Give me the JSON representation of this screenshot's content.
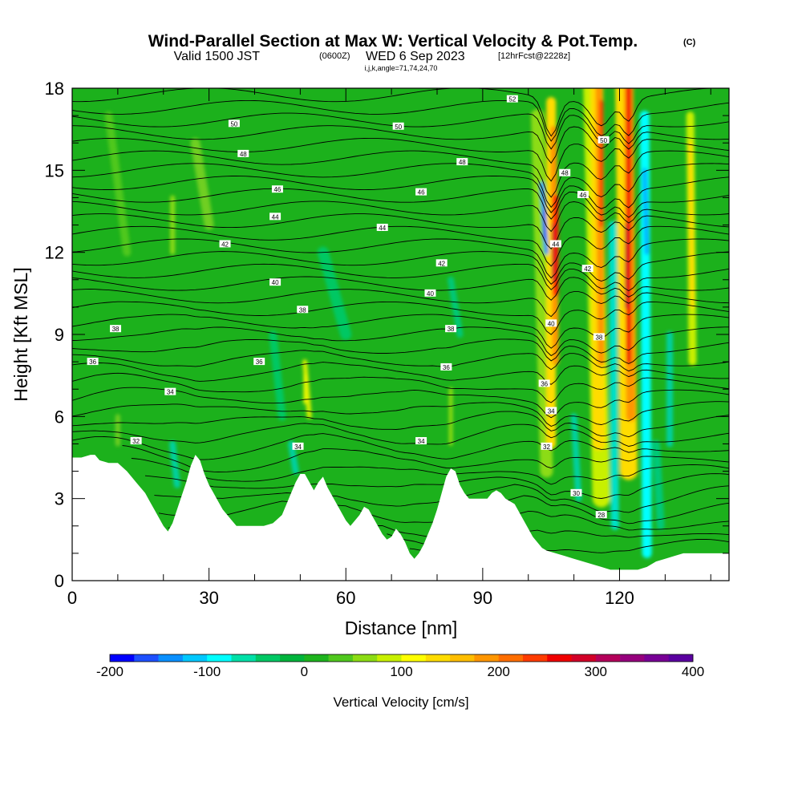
{
  "chart_data": {
    "type": "heatmap",
    "title": "Wind-Parallel Section at Max W: Vertical Velocity & Pot.Temp.",
    "title_mark": "(C)",
    "subtitle_main": "Valid 1500 JST",
    "subtitle_z": "(0600Z)",
    "subtitle_date": "WED 6 Sep 2023",
    "subtitle_fcst": "[12hrFcst@2228z]",
    "subtitle_indices": "i,j,k,angle=71,74,24,70",
    "xlabel": "Distance [nm]",
    "ylabel": "Height [Kft MSL]",
    "xlim": [
      0,
      144
    ],
    "ylim": [
      0,
      18
    ],
    "xticks": [
      0,
      30,
      60,
      90,
      120
    ],
    "yticks": [
      0,
      3,
      6,
      9,
      12,
      15,
      18
    ],
    "colorbar": {
      "label": "Vertical Velocity [cm/s]",
      "range": [
        -200,
        400
      ],
      "ticks": [
        -200,
        -100,
        0,
        100,
        200,
        300,
        400
      ],
      "colors": [
        "#0000ff",
        "#1e50ff",
        "#0a90ff",
        "#00c8ff",
        "#00ffff",
        "#00e0a8",
        "#00c864",
        "#00b43c",
        "#1eb41e",
        "#50c81e",
        "#8cdc14",
        "#c8f000",
        "#ffff00",
        "#ffdc00",
        "#ffbe00",
        "#ff9600",
        "#ff6e00",
        "#ff3c00",
        "#f00000",
        "#d20028",
        "#b4005a",
        "#96007d",
        "#780096",
        "#5a00a0"
      ]
    },
    "terrain": [
      [
        0,
        4.5
      ],
      [
        1,
        4.5
      ],
      [
        2,
        4.5
      ],
      [
        4,
        4.6
      ],
      [
        5,
        4.6
      ],
      [
        6,
        4.4
      ],
      [
        8,
        4.3
      ],
      [
        10,
        4.3
      ],
      [
        12,
        4.0
      ],
      [
        13,
        3.8
      ],
      [
        14,
        3.6
      ],
      [
        15,
        3.4
      ],
      [
        16,
        3.2
      ],
      [
        17,
        2.9
      ],
      [
        18,
        2.6
      ],
      [
        19,
        2.3
      ],
      [
        20,
        2.0
      ],
      [
        21,
        1.8
      ],
      [
        22,
        2.1
      ],
      [
        23,
        2.6
      ],
      [
        24,
        3.1
      ],
      [
        25,
        3.6
      ],
      [
        26,
        4.2
      ],
      [
        27,
        4.6
      ],
      [
        28,
        4.4
      ],
      [
        29,
        3.9
      ],
      [
        30,
        3.5
      ],
      [
        31,
        3.2
      ],
      [
        32,
        2.9
      ],
      [
        33,
        2.6
      ],
      [
        34,
        2.4
      ],
      [
        35,
        2.2
      ],
      [
        36,
        2.0
      ],
      [
        38,
        2.0
      ],
      [
        40,
        2.0
      ],
      [
        42,
        2.0
      ],
      [
        44,
        2.1
      ],
      [
        46,
        2.4
      ],
      [
        47,
        2.8
      ],
      [
        48,
        3.2
      ],
      [
        49,
        3.6
      ],
      [
        50,
        3.9
      ],
      [
        51,
        3.9
      ],
      [
        52,
        3.6
      ],
      [
        53,
        3.3
      ],
      [
        54,
        3.6
      ],
      [
        55,
        3.8
      ],
      [
        56,
        3.4
      ],
      [
        57,
        3.1
      ],
      [
        58,
        2.8
      ],
      [
        59,
        2.5
      ],
      [
        60,
        2.2
      ],
      [
        61,
        2.0
      ],
      [
        62,
        2.2
      ],
      [
        63,
        2.4
      ],
      [
        64,
        2.7
      ],
      [
        65,
        2.6
      ],
      [
        66,
        2.3
      ],
      [
        67,
        2.0
      ],
      [
        68,
        1.7
      ],
      [
        69,
        1.5
      ],
      [
        70,
        1.6
      ],
      [
        71,
        1.9
      ],
      [
        72,
        1.7
      ],
      [
        73,
        1.4
      ],
      [
        74,
        1.0
      ],
      [
        75,
        0.8
      ],
      [
        76,
        1.0
      ],
      [
        77,
        1.3
      ],
      [
        78,
        1.7
      ],
      [
        79,
        2.1
      ],
      [
        80,
        2.6
      ],
      [
        81,
        3.2
      ],
      [
        82,
        3.8
      ],
      [
        83,
        4.1
      ],
      [
        84,
        4.0
      ],
      [
        85,
        3.5
      ],
      [
        86,
        3.2
      ],
      [
        87,
        3.0
      ],
      [
        88,
        3.0
      ],
      [
        89,
        3.0
      ],
      [
        90,
        3.0
      ],
      [
        91,
        3.0
      ],
      [
        92,
        3.2
      ],
      [
        93,
        3.3
      ],
      [
        94,
        3.2
      ],
      [
        95,
        3.0
      ],
      [
        96,
        2.9
      ],
      [
        97,
        2.8
      ],
      [
        98,
        2.5
      ],
      [
        99,
        2.2
      ],
      [
        100,
        1.9
      ],
      [
        101,
        1.6
      ],
      [
        102,
        1.4
      ],
      [
        103,
        1.2
      ],
      [
        104,
        1.1
      ],
      [
        106,
        1.0
      ],
      [
        108,
        0.9
      ],
      [
        110,
        0.8
      ],
      [
        112,
        0.7
      ],
      [
        114,
        0.6
      ],
      [
        116,
        0.5
      ],
      [
        118,
        0.4
      ],
      [
        120,
        0.4
      ],
      [
        122,
        0.4
      ],
      [
        124,
        0.4
      ],
      [
        126,
        0.5
      ],
      [
        128,
        0.7
      ],
      [
        130,
        0.8
      ],
      [
        132,
        0.9
      ],
      [
        134,
        1.0
      ],
      [
        136,
        1.0
      ],
      [
        138,
        1.0
      ],
      [
        140,
        1.0
      ],
      [
        142,
        1.0
      ],
      [
        144,
        1.0
      ]
    ],
    "isentrope_labels": [
      {
        "x": 96.5,
        "y": 17.6,
        "text": "52"
      },
      {
        "x": 35.5,
        "y": 16.7,
        "text": "50"
      },
      {
        "x": 71.5,
        "y": 16.6,
        "text": "50"
      },
      {
        "x": 116.5,
        "y": 16.1,
        "text": "50"
      },
      {
        "x": 37.5,
        "y": 15.6,
        "text": "48"
      },
      {
        "x": 85.5,
        "y": 15.3,
        "text": "48"
      },
      {
        "x": 108,
        "y": 14.9,
        "text": "48"
      },
      {
        "x": 45,
        "y": 14.3,
        "text": "46"
      },
      {
        "x": 76.5,
        "y": 14.2,
        "text": "46"
      },
      {
        "x": 112,
        "y": 14.1,
        "text": "46"
      },
      {
        "x": 44.5,
        "y": 13.3,
        "text": "44"
      },
      {
        "x": 68,
        "y": 12.9,
        "text": "44"
      },
      {
        "x": 106,
        "y": 12.3,
        "text": "44"
      },
      {
        "x": 33.5,
        "y": 12.3,
        "text": "42"
      },
      {
        "x": 81,
        "y": 11.6,
        "text": "42"
      },
      {
        "x": 113,
        "y": 11.4,
        "text": "42"
      },
      {
        "x": 44.5,
        "y": 10.9,
        "text": "40"
      },
      {
        "x": 78.5,
        "y": 10.5,
        "text": "40"
      },
      {
        "x": 105,
        "y": 9.4,
        "text": "40"
      },
      {
        "x": 50.5,
        "y": 9.9,
        "text": "38"
      },
      {
        "x": 9.5,
        "y": 9.2,
        "text": "38"
      },
      {
        "x": 83,
        "y": 9.2,
        "text": "38"
      },
      {
        "x": 115.5,
        "y": 8.9,
        "text": "38"
      },
      {
        "x": 4.5,
        "y": 8.0,
        "text": "36"
      },
      {
        "x": 41,
        "y": 8.0,
        "text": "36"
      },
      {
        "x": 82,
        "y": 7.8,
        "text": "36"
      },
      {
        "x": 103.5,
        "y": 7.2,
        "text": "36"
      },
      {
        "x": 21.5,
        "y": 6.9,
        "text": "34"
      },
      {
        "x": 105,
        "y": 6.2,
        "text": "34"
      },
      {
        "x": 49.5,
        "y": 4.9,
        "text": "34"
      },
      {
        "x": 76.5,
        "y": 5.1,
        "text": "34"
      },
      {
        "x": 14,
        "y": 5.1,
        "text": "32"
      },
      {
        "x": 104,
        "y": 4.9,
        "text": "32"
      },
      {
        "x": 110.5,
        "y": 3.2,
        "text": "30"
      },
      {
        "x": 116,
        "y": 2.4,
        "text": "28"
      }
    ]
  }
}
